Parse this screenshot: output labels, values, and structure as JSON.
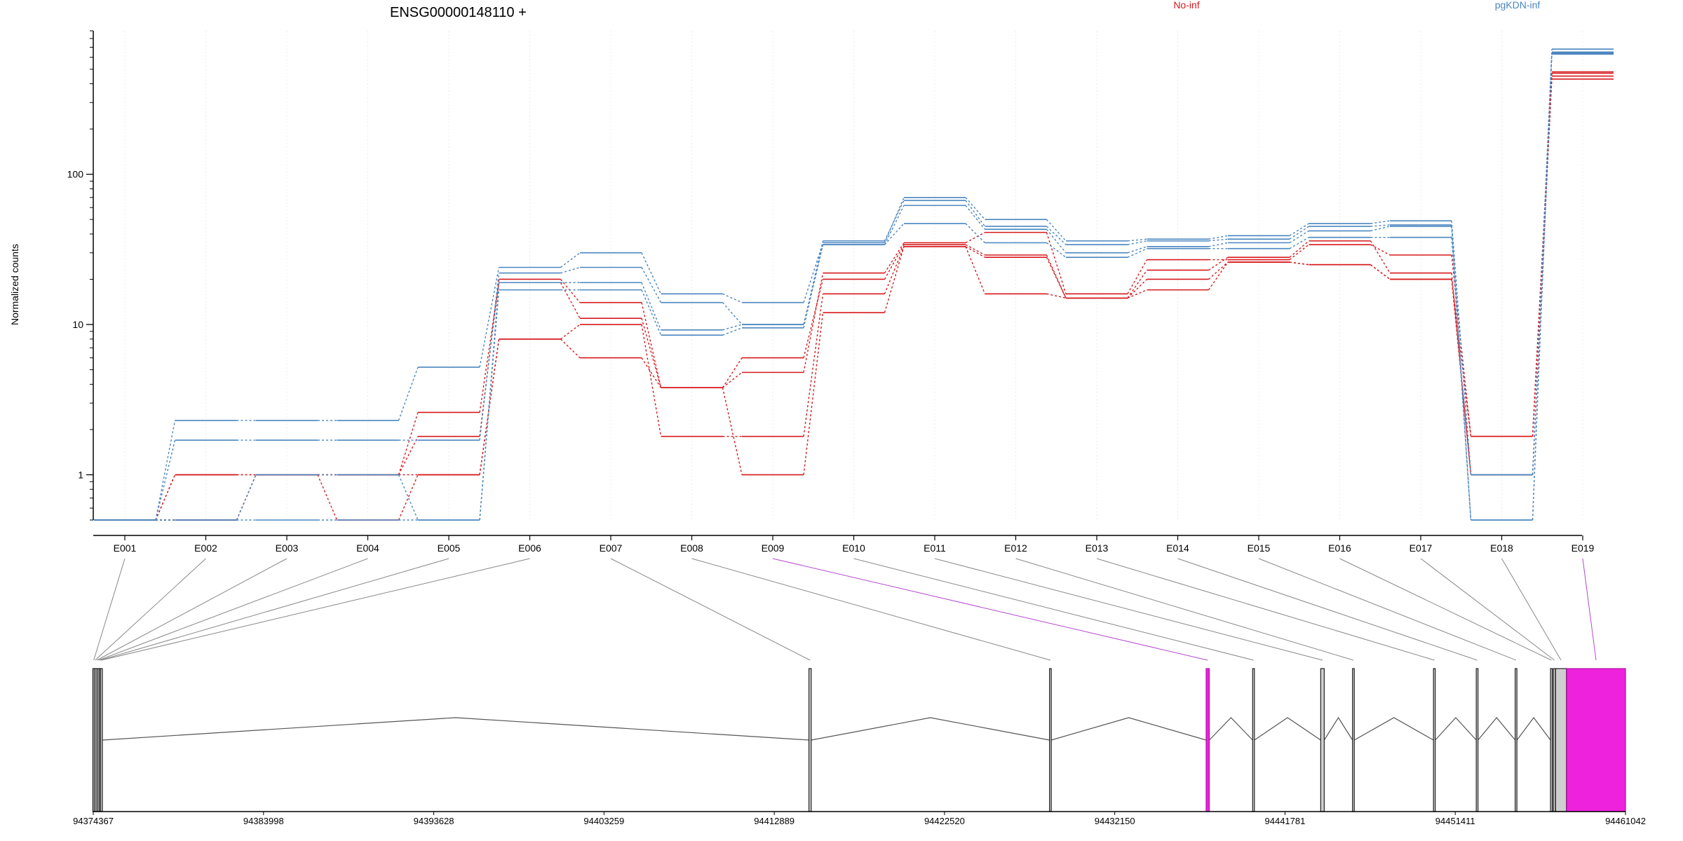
{
  "chart_data": {
    "type": "line",
    "title": "ENSG00000148110 +",
    "ylabel": "Normalized counts",
    "y_scale": "log",
    "ylim": [
      0.5,
      900
    ],
    "y_ticks": [
      {
        "label": "1",
        "value": 1
      },
      {
        "label": "10",
        "value": 10
      },
      {
        "label": "100",
        "value": 100
      }
    ],
    "categories": [
      "E001",
      "E002",
      "E003",
      "E004",
      "E005",
      "E006",
      "E007",
      "E008",
      "E009",
      "E010",
      "E011",
      "E012",
      "E013",
      "E014",
      "E015",
      "E016",
      "E017",
      "E018",
      "E019"
    ],
    "legend": [
      {
        "label": "No-inf",
        "color": "#d7191c"
      },
      {
        "label": "pgKDN-inf",
        "color": "#4a86c0"
      }
    ],
    "series": [
      {
        "group": "No-inf",
        "color": "#d7191c",
        "values": [
          0.5,
          0.5,
          1.0,
          1.0,
          1.8,
          20,
          14,
          3.8,
          4.8,
          22,
          35,
          41,
          16,
          27,
          27,
          34,
          29,
          1.8,
          470
        ]
      },
      {
        "group": "No-inf",
        "color": "#d7191c",
        "values": [
          0.5,
          1.0,
          1.0,
          1.0,
          2.6,
          19,
          11,
          3.8,
          6.0,
          20,
          34,
          29,
          15,
          23,
          28,
          36,
          22,
          1.0,
          450
        ]
      },
      {
        "group": "No-inf",
        "color": "#d7191c",
        "values": [
          0.5,
          1.0,
          1.0,
          1.0,
          1.0,
          8,
          10,
          1.8,
          1.8,
          16,
          33,
          28,
          15,
          20,
          26,
          25,
          20,
          1.8,
          430
        ]
      },
      {
        "group": "No-inf",
        "color": "#d7191c",
        "values": [
          0.5,
          0.5,
          1.0,
          0.5,
          1.0,
          8,
          6,
          3.8,
          1.0,
          12,
          33,
          16,
          15,
          17,
          26,
          25,
          20,
          1.0,
          480
        ]
      },
      {
        "group": "pgKDN-inf",
        "color": "#4a86c0",
        "values": [
          0.5,
          2.3,
          2.3,
          2.3,
          5.2,
          24,
          30,
          16,
          14,
          35,
          70,
          50,
          36,
          37,
          39,
          47,
          49,
          1.0,
          680
        ]
      },
      {
        "group": "pgKDN-inf",
        "color": "#4a86c0",
        "values": [
          0.5,
          1.7,
          1.7,
          1.7,
          1.7,
          22,
          24,
          14,
          10,
          36,
          67,
          45,
          34,
          36,
          37,
          45,
          46,
          1.0,
          650
        ]
      },
      {
        "group": "pgKDN-inf",
        "color": "#4a86c0",
        "values": [
          0.5,
          0.5,
          1.0,
          1.0,
          0.5,
          19,
          19,
          9.2,
          10,
          34,
          62,
          43,
          30,
          33,
          35,
          42,
          45,
          0.5,
          630
        ]
      },
      {
        "group": "pgKDN-inf",
        "color": "#4a86c0",
        "values": [
          0.5,
          0.5,
          0.5,
          0.5,
          0.5,
          17,
          17,
          8.5,
          9.5,
          34,
          47,
          35,
          28,
          32,
          32,
          38,
          38,
          0.5,
          640
        ]
      }
    ],
    "highlight_color": "#ee22dd",
    "gene_model": {
      "start": 94374367,
      "end": 94461042,
      "coordinate_ticks": [
        "94374367",
        "94383998",
        "94393628",
        "94403259",
        "94412889",
        "94422520",
        "94432150",
        "94441781",
        "94451411",
        "94461042"
      ],
      "exons": [
        {
          "id": "E001",
          "start": 94374367,
          "end": 94374420
        },
        {
          "id": "E002",
          "start": 94374430,
          "end": 94374520
        },
        {
          "id": "E003",
          "start": 94374530,
          "end": 94374620
        },
        {
          "id": "E004",
          "start": 94374630,
          "end": 94374720
        },
        {
          "id": "E005",
          "start": 94374730,
          "end": 94374790
        },
        {
          "id": "E006",
          "start": 94374800,
          "end": 94374860
        },
        {
          "id": "E007",
          "start": 94414850,
          "end": 94414980
        },
        {
          "id": "E008",
          "start": 94428460,
          "end": 94428560
        },
        {
          "id": "E009",
          "start": 94437320,
          "end": 94437500,
          "highlight": true
        },
        {
          "id": "E010",
          "start": 94439950,
          "end": 94440050
        },
        {
          "id": "E011",
          "start": 94443800,
          "end": 94444000
        },
        {
          "id": "E012",
          "start": 94445600,
          "end": 94445700
        },
        {
          "id": "E013",
          "start": 94450180,
          "end": 94450280
        },
        {
          "id": "E014",
          "start": 94452600,
          "end": 94452700
        },
        {
          "id": "E015",
          "start": 94454800,
          "end": 94454900
        },
        {
          "id": "E016",
          "start": 94456800,
          "end": 94456900
        },
        {
          "id": "E017",
          "start": 94456960,
          "end": 94457080
        },
        {
          "id": "E018",
          "start": 94457090,
          "end": 94457700
        },
        {
          "id": "E019",
          "start": 94457710,
          "end": 94461042,
          "highlight": true
        }
      ]
    }
  }
}
